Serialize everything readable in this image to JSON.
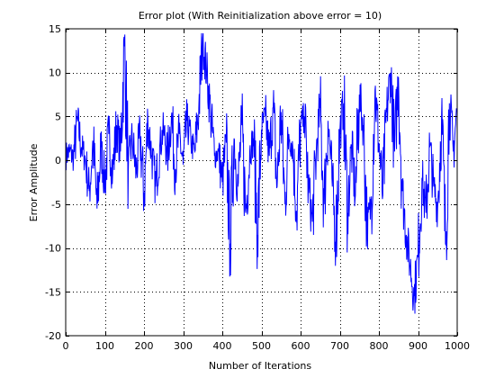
{
  "chart_data": {
    "type": "line",
    "title": "Error plot (With Reinitialization above error = 10)",
    "xlabel": "Number of Iterations",
    "ylabel": "Error Amplitude",
    "xlim": [
      0,
      1000
    ],
    "ylim": [
      -20,
      15
    ],
    "xticks": [
      0,
      100,
      200,
      300,
      400,
      500,
      600,
      700,
      800,
      900,
      1000
    ],
    "yticks": [
      -20,
      -15,
      -10,
      -5,
      0,
      5,
      10,
      15
    ],
    "grid": true,
    "grid_style": "dotted",
    "legend": "none",
    "series_color": "#0000ff",
    "series": [
      {
        "sample_step": 10,
        "x_start": 0,
        "values": [
          0.5,
          1.0,
          0.3,
          4.5,
          1.5,
          0.2,
          -3.5,
          2.0,
          -5.5,
          1.5,
          -2.5,
          3.0,
          -1.5,
          4.0,
          1.0,
          13.0,
          -1.0,
          2.5,
          -1.5,
          3.0,
          -4.0,
          4.5,
          0.5,
          -3.0,
          1.5,
          3.5,
          0.5,
          5.0,
          -1.0,
          3.0,
          -0.5,
          4.5,
          2.0,
          1.0,
          6.0,
          14.0,
          10.0,
          5.5,
          0.5,
          1.0,
          -2.5,
          2.0,
          -9.5,
          2.5,
          -3.0,
          4.0,
          -6.0,
          1.0,
          2.5,
          -8.5,
          3.5,
          5.0,
          0.5,
          6.0,
          -3.0,
          5.5,
          -5.0,
          3.0,
          1.5,
          -6.0,
          4.0,
          5.0,
          -3.0,
          -7.0,
          1.0,
          6.0,
          -5.0,
          4.5,
          -2.0,
          -9.0,
          3.0,
          6.5,
          -6.0,
          1.5,
          -4.0,
          7.5,
          4.0,
          -8.0,
          -5.0,
          8.0,
          2.0,
          -4.0,
          5.5,
          10.0,
          1.0,
          9.5,
          -3.5,
          -8.5,
          -12.0,
          -15.5,
          -11.0,
          -2.0,
          -6.0,
          1.5,
          -3.0,
          -5.5,
          5.0,
          -9.5,
          6.5,
          1.0,
          6.0
        ]
      }
    ]
  }
}
